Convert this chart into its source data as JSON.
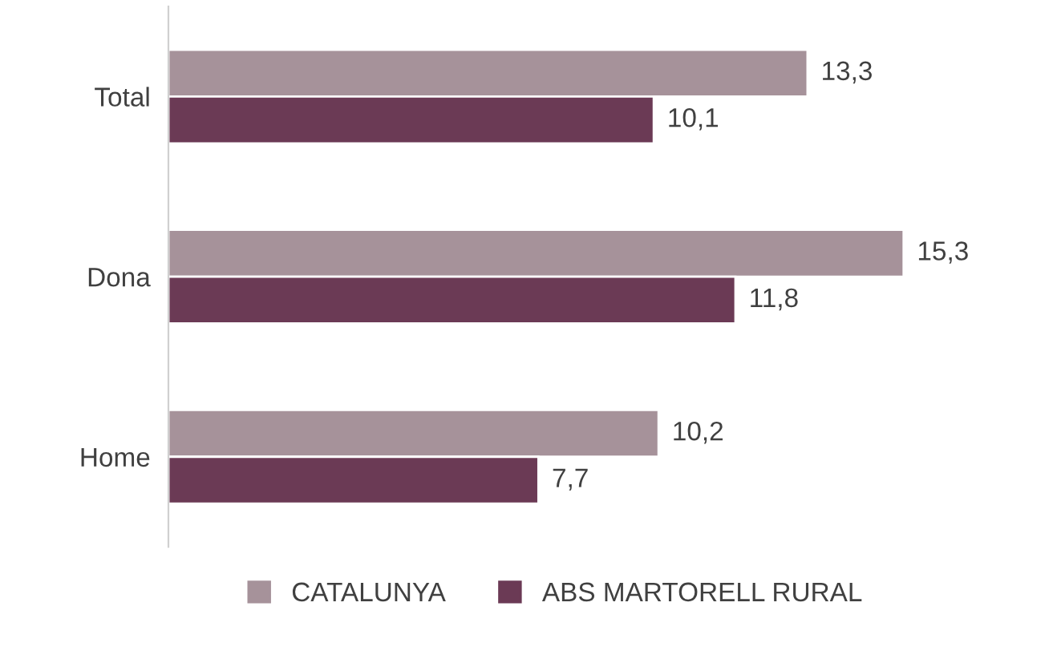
{
  "chart_data": {
    "type": "bar",
    "orientation": "horizontal",
    "categories": [
      "Total",
      "Dona",
      "Home"
    ],
    "series": [
      {
        "name": "CATALUNYA",
        "color": "#a6929a",
        "values": [
          13.3,
          15.3,
          10.2
        ],
        "value_labels": [
          "13,3",
          "15,3",
          "10,2"
        ]
      },
      {
        "name": "ABS MARTORELL RURAL",
        "color": "#6b3a55",
        "values": [
          10.1,
          11.8,
          7.7
        ],
        "value_labels": [
          "10,1",
          "11,8",
          "7,7"
        ]
      }
    ],
    "legend": "bottom",
    "grid": false
  }
}
